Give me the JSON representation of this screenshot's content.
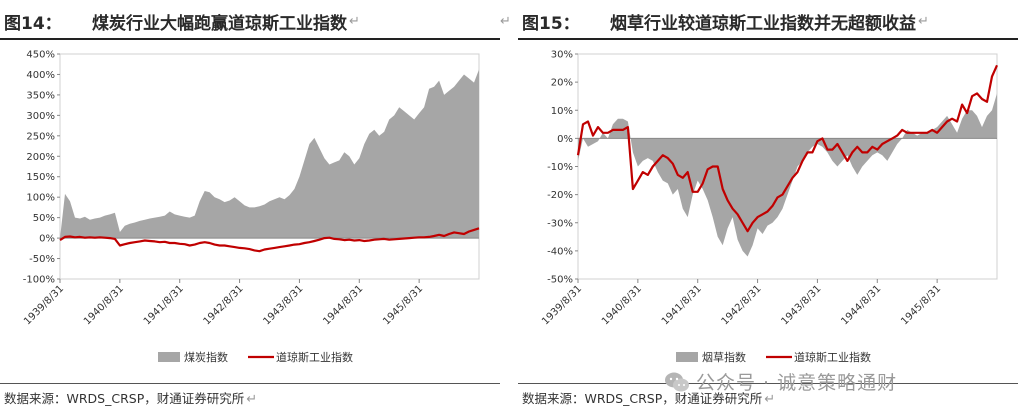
{
  "left": {
    "title_num": "图14：",
    "title_text": "煤炭行业大幅跑赢道琼斯工业指数",
    "source": "数据来源：WRDS_CRSP，财通证券研究所",
    "chart_data": {
      "type": "area",
      "ylim": [
        -100,
        450
      ],
      "yticks": [
        -100,
        -50,
        0,
        50,
        100,
        150,
        200,
        250,
        300,
        350,
        400,
        450
      ],
      "ytick_labels": [
        "-100%",
        "-50%",
        "0%",
        "50%",
        "100%",
        "150%",
        "200%",
        "250%",
        "300%",
        "350%",
        "400%",
        "450%"
      ],
      "x": [
        0,
        1,
        2,
        3,
        4,
        5,
        6,
        7,
        8,
        9,
        10,
        11,
        12,
        13,
        14,
        15,
        16,
        17,
        18,
        19,
        20,
        21,
        22,
        23,
        24,
        25,
        26,
        27,
        28,
        29,
        30,
        31,
        32,
        33,
        34,
        35,
        36,
        37,
        38,
        39,
        40,
        41,
        42,
        43,
        44,
        45,
        46,
        47,
        48,
        49,
        50,
        51,
        52,
        53,
        54,
        55,
        56,
        57,
        58,
        59,
        60,
        61,
        62,
        63,
        64,
        65,
        66,
        67,
        68,
        69,
        70,
        71,
        72,
        73,
        74,
        75,
        76,
        77,
        78,
        79,
        80,
        81,
        82,
        83,
        84
      ],
      "xticks": [
        0,
        12,
        24,
        36,
        48,
        60,
        72
      ],
      "xtick_labels": [
        "1939/8/31",
        "1940/8/31",
        "1941/8/31",
        "1942/8/31",
        "1943/8/31",
        "1944/8/31",
        "1945/8/31"
      ],
      "series": [
        {
          "name": "煤炭指数",
          "color": "#a6a6a6",
          "kind": "area",
          "values": [
            0,
            108,
            90,
            50,
            48,
            52,
            45,
            48,
            50,
            55,
            58,
            62,
            15,
            30,
            35,
            38,
            42,
            45,
            48,
            50,
            52,
            55,
            65,
            58,
            55,
            52,
            50,
            55,
            90,
            115,
            112,
            100,
            95,
            88,
            92,
            100,
            90,
            80,
            75,
            75,
            78,
            82,
            90,
            95,
            100,
            95,
            105,
            120,
            150,
            190,
            230,
            245,
            220,
            195,
            180,
            185,
            190,
            210,
            200,
            180,
            195,
            230,
            255,
            265,
            250,
            260,
            290,
            300,
            320,
            310,
            300,
            290,
            305,
            320,
            365,
            370,
            385,
            350,
            360,
            370,
            385,
            400,
            390,
            380,
            412
          ]
        },
        {
          "name": "道琼斯工业指数",
          "color": "#c00000",
          "kind": "line",
          "values": [
            -5,
            3,
            4,
            2,
            3,
            1,
            2,
            1,
            2,
            1,
            0,
            -2,
            -18,
            -15,
            -12,
            -10,
            -8,
            -6,
            -7,
            -8,
            -10,
            -9,
            -12,
            -12,
            -14,
            -15,
            -18,
            -16,
            -12,
            -10,
            -12,
            -16,
            -18,
            -18,
            -20,
            -22,
            -24,
            -25,
            -27,
            -30,
            -32,
            -28,
            -26,
            -24,
            -22,
            -20,
            -18,
            -16,
            -15,
            -12,
            -10,
            -7,
            -4,
            0,
            1,
            -2,
            -3,
            -5,
            -4,
            -6,
            -5,
            -7,
            -6,
            -4,
            -3,
            -2,
            -4,
            -3,
            -2,
            -1,
            0,
            1,
            2,
            2,
            3,
            5,
            8,
            5,
            10,
            14,
            12,
            10,
            16,
            20,
            24
          ]
        }
      ]
    }
  },
  "right": {
    "title_num": "图15：",
    "title_text": "烟草行业较道琼斯工业指数并无超额收益",
    "source": "数据来源：WRDS_CRSP，财通证券研究所",
    "chart_data": {
      "type": "area",
      "ylim": [
        -50,
        30
      ],
      "yticks": [
        -50,
        -40,
        -30,
        -20,
        -10,
        0,
        10,
        20,
        30
      ],
      "ytick_labels": [
        "-50%",
        "-40%",
        "-30%",
        "-20%",
        "-10%",
        "0%",
        "10%",
        "20%",
        "30%"
      ],
      "x": [
        0,
        1,
        2,
        3,
        4,
        5,
        6,
        7,
        8,
        9,
        10,
        11,
        12,
        13,
        14,
        15,
        16,
        17,
        18,
        19,
        20,
        21,
        22,
        23,
        24,
        25,
        26,
        27,
        28,
        29,
        30,
        31,
        32,
        33,
        34,
        35,
        36,
        37,
        38,
        39,
        40,
        41,
        42,
        43,
        44,
        45,
        46,
        47,
        48,
        49,
        50,
        51,
        52,
        53,
        54,
        55,
        56,
        57,
        58,
        59,
        60,
        61,
        62,
        63,
        64,
        65,
        66,
        67,
        68,
        69,
        70,
        71,
        72,
        73,
        74,
        75,
        76,
        77,
        78,
        79,
        80,
        81,
        82,
        83,
        84
      ],
      "xticks": [
        0,
        12,
        24,
        36,
        48,
        60,
        72
      ],
      "xtick_labels": [
        "1939/8/31",
        "1940/8/31",
        "1941/8/31",
        "1942/8/31",
        "1943/8/31",
        "1944/8/31",
        "1945/8/31"
      ],
      "series": [
        {
          "name": "烟草指数",
          "color": "#a6a6a6",
          "kind": "area",
          "values": [
            -8,
            0,
            -3,
            -2,
            -1,
            2,
            0,
            5,
            7,
            7,
            6,
            -5,
            -10,
            -8,
            -7,
            -8,
            -12,
            -15,
            -16,
            -20,
            -18,
            -25,
            -28,
            -20,
            -15,
            -18,
            -22,
            -28,
            -35,
            -38,
            -32,
            -28,
            -36,
            -40,
            -42,
            -38,
            -32,
            -34,
            -31,
            -30,
            -28,
            -25,
            -20,
            -15,
            -10,
            -8,
            -5,
            -3,
            -2,
            -3,
            -5,
            -8,
            -10,
            -8,
            -6,
            -10,
            -13,
            -10,
            -8,
            -6,
            -5,
            -6,
            -8,
            -5,
            -2,
            0,
            3,
            2,
            1,
            2,
            2,
            3,
            4,
            6,
            8,
            5,
            2,
            7,
            10,
            10,
            8,
            4,
            8,
            10,
            16
          ]
        },
        {
          "name": "道琼斯工业指数",
          "color": "#c00000",
          "kind": "line",
          "values": [
            -6,
            5,
            6,
            1,
            4,
            2,
            2,
            3,
            3,
            3,
            4,
            -18,
            -15,
            -12,
            -13,
            -10,
            -8,
            -6,
            -7,
            -9,
            -13,
            -14,
            -12,
            -19,
            -19,
            -16,
            -11,
            -10,
            -10,
            -18,
            -22,
            -25,
            -27,
            -30,
            -33,
            -30,
            -28,
            -27,
            -26,
            -24,
            -21,
            -20,
            -17,
            -14,
            -12,
            -8,
            -5,
            -5,
            -1,
            0,
            -4,
            -4,
            -2,
            -5,
            -8,
            -5,
            -3,
            -5,
            -5,
            -3,
            -4,
            -2,
            -1,
            0,
            1,
            3,
            2,
            2,
            2,
            2,
            2,
            3,
            2,
            4,
            6,
            7,
            6,
            12,
            9,
            15,
            16,
            14,
            13,
            22,
            26
          ]
        }
      ]
    }
  },
  "watermark": {
    "text": "公众号 · 诚意策略通财"
  },
  "return_mark": "↵"
}
